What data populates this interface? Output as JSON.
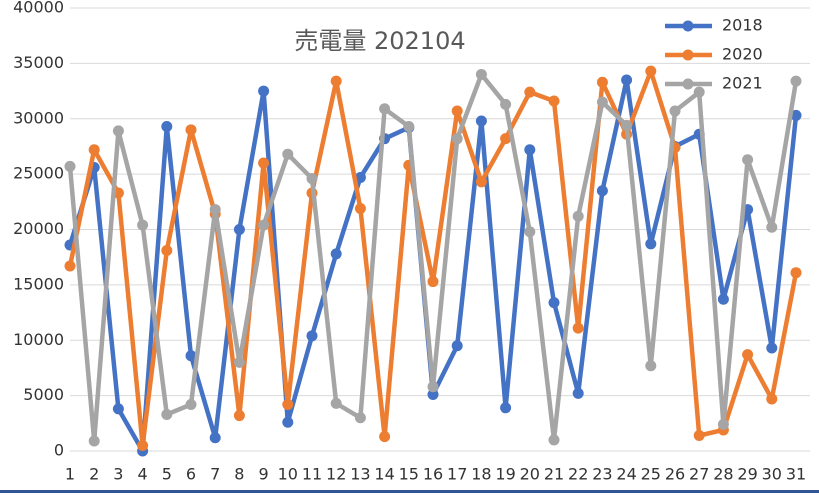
{
  "chart_data": {
    "type": "line",
    "title": "売電量 202104",
    "categories": [
      "1",
      "2",
      "3",
      "4",
      "5",
      "6",
      "7",
      "8",
      "9",
      "10",
      "11",
      "12",
      "13",
      "14",
      "15",
      "16",
      "17",
      "18",
      "19",
      "20",
      "21",
      "22",
      "23",
      "24",
      "25",
      "26",
      "27",
      "28",
      "29",
      "30",
      "31"
    ],
    "series": [
      {
        "name": "2018",
        "color": "#4472c4",
        "values": [
          18600,
          25600,
          3800,
          0,
          29300,
          8600,
          1200,
          20000,
          32500,
          2600,
          10400,
          17800,
          24700,
          28200,
          29200,
          5100,
          9500,
          29800,
          3900,
          27200,
          13400,
          5200,
          23500,
          33500,
          18700,
          27500,
          28600,
          13700,
          21800,
          9300,
          30300
        ]
      },
      {
        "name": "2020",
        "color": "#ed7d31",
        "values": [
          16700,
          27200,
          23300,
          500,
          18100,
          29000,
          21400,
          3200,
          26000,
          4200,
          23300,
          33400,
          21900,
          1300,
          25800,
          15300,
          30700,
          24300,
          28200,
          32400,
          31600,
          11100,
          33300,
          28600,
          34300,
          27400,
          1400,
          1900,
          8700,
          4700,
          16100
        ]
      },
      {
        "name": "2021",
        "color": "#a5a5a5",
        "values": [
          25700,
          900,
          28900,
          20400,
          3300,
          4200,
          21800,
          8000,
          20400,
          26800,
          24600,
          4300,
          3000,
          30900,
          29300,
          5800,
          28200,
          34000,
          31300,
          19800,
          1000,
          21200,
          31500,
          29400,
          7700,
          30700,
          32400,
          2400,
          26300,
          20200,
          33400
        ]
      }
    ],
    "ylim": [
      0,
      40000
    ],
    "yticks": [
      0,
      5000,
      10000,
      15000,
      20000,
      25000,
      30000,
      35000,
      40000
    ],
    "grid": true
  }
}
